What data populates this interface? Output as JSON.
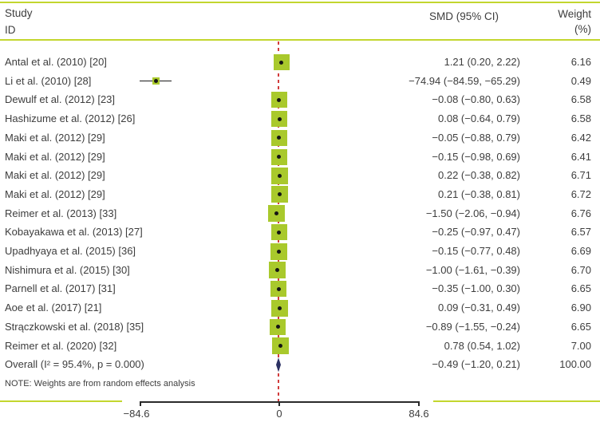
{
  "header": {
    "study_col_line1": "Study",
    "study_col_line2": "ID",
    "smd_col": "SMD (95% CI)",
    "weight_col_line1": "Weight",
    "weight_col_line2": "(%)"
  },
  "note": "NOTE: Weights are from random effects analysis",
  "colors": {
    "accent_green": "#c3d62e",
    "marker_green": "#a9c92c",
    "overall_navy": "#2b3163",
    "dashed_red": "#d23c3c",
    "text": "#3d3d3d"
  },
  "chart_data": {
    "type": "forest",
    "x_axis": {
      "range": [
        -84.6,
        84.6
      ],
      "ticks": [
        -84.6,
        0,
        84.6
      ],
      "tick_labels": [
        "−84.6",
        "0",
        "84.6"
      ]
    },
    "overall_effect_line": -0.49,
    "rows": [
      {
        "study": "Antal et al. (2010) [20]",
        "smd": 1.21,
        "lo": 0.2,
        "hi": 2.22,
        "smd_text": "1.21 (0.20, 2.22)",
        "weight": 6.16,
        "weight_text": "6.16"
      },
      {
        "study": "Li et al. (2010) [28]",
        "smd": -74.94,
        "lo": -84.59,
        "hi": -65.29,
        "smd_text": "−74.94 (−84.59, −65.29)",
        "weight": 0.49,
        "weight_text": "0.49"
      },
      {
        "study": "Dewulf et al. (2012) [23]",
        "smd": -0.08,
        "lo": -0.8,
        "hi": 0.63,
        "smd_text": "−0.08 (−0.80, 0.63)",
        "weight": 6.58,
        "weight_text": "6.58"
      },
      {
        "study": "Hashizume et al. (2012) [26]",
        "smd": 0.08,
        "lo": -0.64,
        "hi": 0.79,
        "smd_text": "0.08 (−0.64, 0.79)",
        "weight": 6.58,
        "weight_text": "6.58"
      },
      {
        "study": "Maki et al. (2012) [29]",
        "smd": -0.05,
        "lo": -0.88,
        "hi": 0.79,
        "smd_text": "−0.05 (−0.88, 0.79)",
        "weight": 6.42,
        "weight_text": "6.42"
      },
      {
        "study": "Maki et al. (2012) [29]",
        "smd": -0.15,
        "lo": -0.98,
        "hi": 0.69,
        "smd_text": "−0.15 (−0.98, 0.69)",
        "weight": 6.41,
        "weight_text": "6.41"
      },
      {
        "study": "Maki et al. (2012) [29]",
        "smd": 0.22,
        "lo": -0.38,
        "hi": 0.82,
        "smd_text": "0.22 (−0.38, 0.82)",
        "weight": 6.71,
        "weight_text": "6.71"
      },
      {
        "study": "Maki et al. (2012) [29]",
        "smd": 0.21,
        "lo": -0.38,
        "hi": 0.81,
        "smd_text": "0.21 (−0.38, 0.81)",
        "weight": 6.72,
        "weight_text": "6.72"
      },
      {
        "study": "Reimer et al. (2013) [33]",
        "smd": -1.5,
        "lo": -2.06,
        "hi": -0.94,
        "smd_text": "−1.50 (−2.06, −0.94)",
        "weight": 6.76,
        "weight_text": "6.76"
      },
      {
        "study": "Kobayakawa et al. (2013) [27]",
        "smd": -0.25,
        "lo": -0.97,
        "hi": 0.47,
        "smd_text": "−0.25 (−0.97, 0.47)",
        "weight": 6.57,
        "weight_text": "6.57"
      },
      {
        "study": "Upadhyaya et al. (2015) [36]",
        "smd": -0.15,
        "lo": -0.77,
        "hi": 0.48,
        "smd_text": "−0.15 (−0.77, 0.48)",
        "weight": 6.69,
        "weight_text": "6.69"
      },
      {
        "study": "Nishimura et al. (2015) [30]",
        "smd": -1.0,
        "lo": -1.61,
        "hi": -0.39,
        "smd_text": "−1.00 (−1.61, −0.39)",
        "weight": 6.7,
        "weight_text": "6.70"
      },
      {
        "study": "Parnell et al. (2017) [31]",
        "smd": -0.35,
        "lo": -1.0,
        "hi": 0.3,
        "smd_text": "−0.35 (−1.00, 0.30)",
        "weight": 6.65,
        "weight_text": "6.65"
      },
      {
        "study": "Aoe et al. (2017) [21]",
        "smd": 0.09,
        "lo": -0.31,
        "hi": 0.49,
        "smd_text": "0.09 (−0.31, 0.49)",
        "weight": 6.9,
        "weight_text": "6.90"
      },
      {
        "study": "Strączkowski et al. (2018) [35]",
        "smd": -0.89,
        "lo": -1.55,
        "hi": -0.24,
        "smd_text": "−0.89 (−1.55, −0.24)",
        "weight": 6.65,
        "weight_text": "6.65"
      },
      {
        "study": "Reimer et al. (2020) [32]",
        "smd": 0.78,
        "lo": 0.54,
        "hi": 1.02,
        "smd_text": "0.78 (0.54, 1.02)",
        "weight": 7.0,
        "weight_text": "7.00"
      }
    ],
    "overall": {
      "study": "Overall (I² = 95.4%, p = 0.000)",
      "smd": -0.49,
      "lo": -1.2,
      "hi": 0.21,
      "smd_text": "−0.49 (−1.20, 0.21)",
      "weight": 100.0,
      "weight_text": "100.00"
    }
  }
}
